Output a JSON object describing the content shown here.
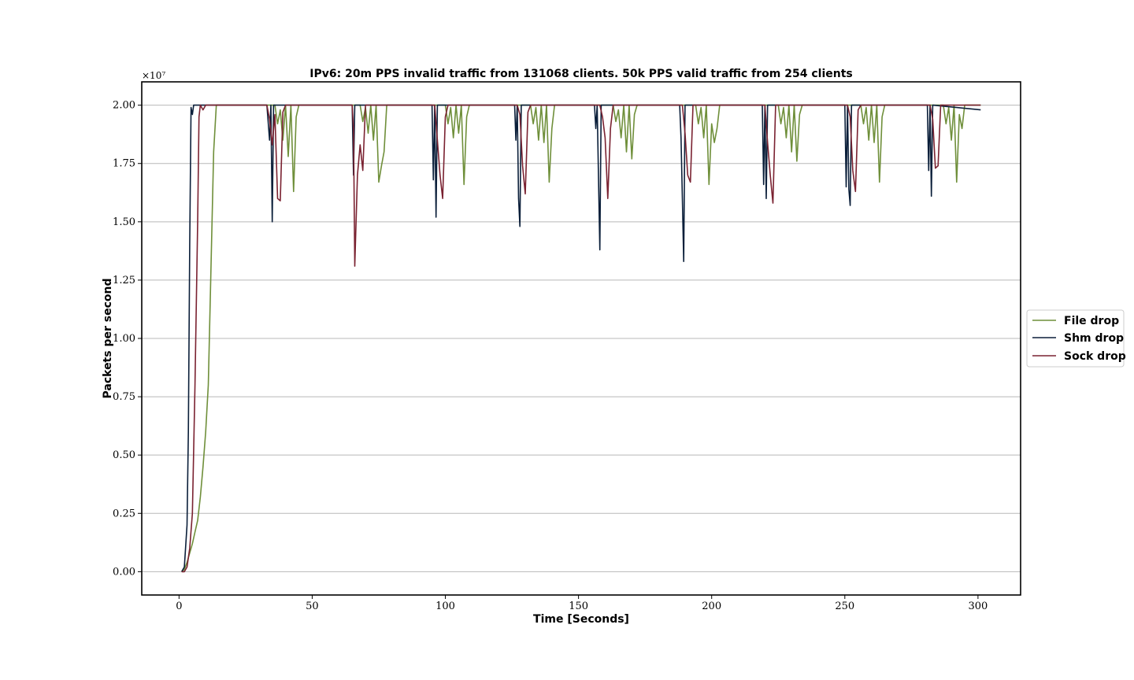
{
  "chart_data": {
    "type": "line",
    "title": "IPv6: 20m PPS invalid traffic from 131068 clients. 50k PPS valid traffic from 254 clients",
    "xlabel": "Time [Seconds]",
    "ylabel": "Packets per second",
    "y_multiplier_label": "×10⁷",
    "xlim": [
      -14,
      316
    ],
    "ylim": [
      -0.1,
      2.1
    ],
    "x_ticks": [
      0,
      50,
      100,
      150,
      200,
      250,
      300
    ],
    "x_tick_labels": [
      "0",
      "50",
      "100",
      "150",
      "200",
      "250",
      "300"
    ],
    "y_ticks": [
      0,
      0.25,
      0.5,
      0.75,
      1.0,
      1.25,
      1.5,
      1.75,
      2.0
    ],
    "y_tick_labels": [
      "0.00",
      "0.25",
      "0.50",
      "0.75",
      "1.00",
      "1.25",
      "1.50",
      "1.75",
      "2.00"
    ],
    "grid": "horizontal",
    "legend_position": "right-outside",
    "series": [
      {
        "name": "File drop",
        "color": "#6f8f3a",
        "points": [
          [
            1,
            0
          ],
          [
            2,
            0.01
          ],
          [
            3,
            0.04
          ],
          [
            4,
            0.08
          ],
          [
            5,
            0.12
          ],
          [
            6,
            0.17
          ],
          [
            7,
            0.22
          ],
          [
            8,
            0.32
          ],
          [
            9,
            0.45
          ],
          [
            10,
            0.6
          ],
          [
            11,
            0.8
          ],
          [
            12,
            1.3
          ],
          [
            13,
            1.8
          ],
          [
            14,
            2.0
          ],
          [
            36,
            2.0
          ],
          [
            37,
            1.92
          ],
          [
            38,
            1.98
          ],
          [
            39,
            1.85
          ],
          [
            40,
            2.0
          ],
          [
            41,
            1.78
          ],
          [
            42,
            2.0
          ],
          [
            43,
            1.63
          ],
          [
            44,
            1.95
          ],
          [
            45,
            2.0
          ],
          [
            48,
            2.0
          ],
          [
            68,
            2.0
          ],
          [
            69,
            1.93
          ],
          [
            70,
            1.99
          ],
          [
            71,
            1.88
          ],
          [
            72,
            2.0
          ],
          [
            73,
            1.85
          ],
          [
            74,
            2.0
          ],
          [
            75,
            1.67
          ],
          [
            76,
            1.74
          ],
          [
            77,
            1.8
          ],
          [
            78,
            2.0
          ],
          [
            100,
            2.0
          ],
          [
            101,
            1.92
          ],
          [
            102,
            1.99
          ],
          [
            103,
            1.86
          ],
          [
            104,
            2.0
          ],
          [
            105,
            1.88
          ],
          [
            106,
            2.0
          ],
          [
            107,
            1.66
          ],
          [
            108,
            1.95
          ],
          [
            109,
            2.0
          ],
          [
            132,
            2.0
          ],
          [
            133,
            1.92
          ],
          [
            134,
            1.99
          ],
          [
            135,
            1.85
          ],
          [
            136,
            2.0
          ],
          [
            137,
            1.84
          ],
          [
            138,
            2.0
          ],
          [
            139,
            1.67
          ],
          [
            140,
            1.9
          ],
          [
            141,
            2.0
          ],
          [
            163,
            2.0
          ],
          [
            164,
            1.93
          ],
          [
            165,
            1.98
          ],
          [
            166,
            1.86
          ],
          [
            167,
            2.0
          ],
          [
            168,
            1.8
          ],
          [
            169,
            2.0
          ],
          [
            170,
            1.77
          ],
          [
            171,
            1.96
          ],
          [
            172,
            2.0
          ],
          [
            194,
            2.0
          ],
          [
            195,
            1.92
          ],
          [
            196,
            1.99
          ],
          [
            197,
            1.86
          ],
          [
            198,
            2.0
          ],
          [
            199,
            1.66
          ],
          [
            200,
            1.92
          ],
          [
            201,
            1.84
          ],
          [
            202,
            1.9
          ],
          [
            203,
            2.0
          ],
          [
            225,
            2.0
          ],
          [
            226,
            1.92
          ],
          [
            227,
            1.99
          ],
          [
            228,
            1.86
          ],
          [
            229,
            2.0
          ],
          [
            230,
            1.8
          ],
          [
            231,
            2.0
          ],
          [
            232,
            1.76
          ],
          [
            233,
            1.96
          ],
          [
            234,
            2.0
          ],
          [
            256,
            2.0
          ],
          [
            257,
            1.92
          ],
          [
            258,
            1.99
          ],
          [
            259,
            1.85
          ],
          [
            260,
            2.0
          ],
          [
            261,
            1.84
          ],
          [
            262,
            2.0
          ],
          [
            263,
            1.67
          ],
          [
            264,
            1.95
          ],
          [
            265,
            2.0
          ],
          [
            287,
            2.0
          ],
          [
            288,
            1.92
          ],
          [
            289,
            1.99
          ],
          [
            290,
            1.85
          ],
          [
            291,
            2.0
          ],
          [
            292,
            1.67
          ],
          [
            293,
            1.96
          ],
          [
            294,
            1.9
          ],
          [
            295,
            2.0
          ],
          [
            301,
            2.0
          ]
        ]
      },
      {
        "name": "Shm drop",
        "color": "#0b1f3a",
        "points": [
          [
            1,
            0
          ],
          [
            2,
            0.02
          ],
          [
            3,
            0.2
          ],
          [
            3.5,
            0.6
          ],
          [
            4,
            1.4
          ],
          [
            4.5,
            1.99
          ],
          [
            5,
            1.96
          ],
          [
            5.5,
            2.0
          ],
          [
            33,
            2.0
          ],
          [
            34,
            1.85
          ],
          [
            34.5,
            2.0
          ],
          [
            35,
            1.5
          ],
          [
            35.5,
            2.0
          ],
          [
            65,
            2.0
          ],
          [
            65.5,
            1.7
          ],
          [
            66,
            2.0
          ],
          [
            95,
            2.0
          ],
          [
            95.5,
            1.68
          ],
          [
            96,
            2.0
          ],
          [
            96.5,
            1.52
          ],
          [
            97,
            2.0
          ],
          [
            126,
            2.0
          ],
          [
            126.5,
            1.85
          ],
          [
            127,
            2.0
          ],
          [
            127.5,
            1.6
          ],
          [
            128,
            1.48
          ],
          [
            128.5,
            2.0
          ],
          [
            156,
            2.0
          ],
          [
            156.5,
            1.9
          ],
          [
            157,
            2.0
          ],
          [
            158,
            1.38
          ],
          [
            158.5,
            2.0
          ],
          [
            188,
            2.0
          ],
          [
            188.5,
            1.86
          ],
          [
            189,
            1.6
          ],
          [
            189.5,
            1.33
          ],
          [
            190,
            2.0
          ],
          [
            219,
            2.0
          ],
          [
            219.5,
            1.66
          ],
          [
            220,
            2.0
          ],
          [
            220.5,
            1.6
          ],
          [
            221,
            2.0
          ],
          [
            250,
            2.0
          ],
          [
            250.5,
            1.65
          ],
          [
            251,
            2.0
          ],
          [
            251.5,
            1.64
          ],
          [
            252,
            1.57
          ],
          [
            252.5,
            2.0
          ],
          [
            281,
            2.0
          ],
          [
            281.5,
            1.72
          ],
          [
            282,
            2.0
          ],
          [
            282.5,
            1.61
          ],
          [
            283,
            2.0
          ],
          [
            301,
            1.98
          ]
        ]
      },
      {
        "name": "Sock drop",
        "color": "#7a2231",
        "points": [
          [
            1,
            0
          ],
          [
            2,
            0.0
          ],
          [
            3,
            0.02
          ],
          [
            4,
            0.1
          ],
          [
            5,
            0.25
          ],
          [
            6,
            0.8
          ],
          [
            7,
            1.5
          ],
          [
            7.5,
            1.95
          ],
          [
            8,
            2.0
          ],
          [
            9,
            1.98
          ],
          [
            10,
            2.0
          ],
          [
            33,
            2.0
          ],
          [
            34,
            1.94
          ],
          [
            35,
            1.83
          ],
          [
            36,
            1.96
          ],
          [
            37,
            1.6
          ],
          [
            38,
            1.59
          ],
          [
            39,
            1.97
          ],
          [
            40,
            2.0
          ],
          [
            65,
            2.0
          ],
          [
            65.5,
            1.9
          ],
          [
            66,
            1.31
          ],
          [
            67,
            1.7
          ],
          [
            68,
            1.83
          ],
          [
            69,
            1.72
          ],
          [
            70,
            2.0
          ],
          [
            96,
            2.0
          ],
          [
            97,
            1.85
          ],
          [
            98,
            1.7
          ],
          [
            99,
            1.6
          ],
          [
            100,
            1.95
          ],
          [
            101,
            2.0
          ],
          [
            127,
            2.0
          ],
          [
            128,
            1.96
          ],
          [
            129,
            1.74
          ],
          [
            130,
            1.62
          ],
          [
            131,
            1.97
          ],
          [
            132,
            2.0
          ],
          [
            158,
            2.0
          ],
          [
            159,
            1.95
          ],
          [
            160,
            1.86
          ],
          [
            161,
            1.6
          ],
          [
            162,
            1.9
          ],
          [
            163,
            2.0
          ],
          [
            189,
            2.0
          ],
          [
            190,
            1.88
          ],
          [
            191,
            1.7
          ],
          [
            192,
            1.67
          ],
          [
            193,
            2.0
          ],
          [
            220,
            2.0
          ],
          [
            221,
            1.84
          ],
          [
            222,
            1.7
          ],
          [
            223,
            1.58
          ],
          [
            224,
            2.0
          ],
          [
            251,
            2.0
          ],
          [
            252,
            1.95
          ],
          [
            253,
            1.72
          ],
          [
            254,
            1.63
          ],
          [
            255,
            1.98
          ],
          [
            256,
            2.0
          ],
          [
            282,
            2.0
          ],
          [
            283,
            1.94
          ],
          [
            284,
            1.73
          ],
          [
            285,
            1.74
          ],
          [
            286,
            2.0
          ],
          [
            301,
            2.0
          ]
        ]
      }
    ]
  }
}
